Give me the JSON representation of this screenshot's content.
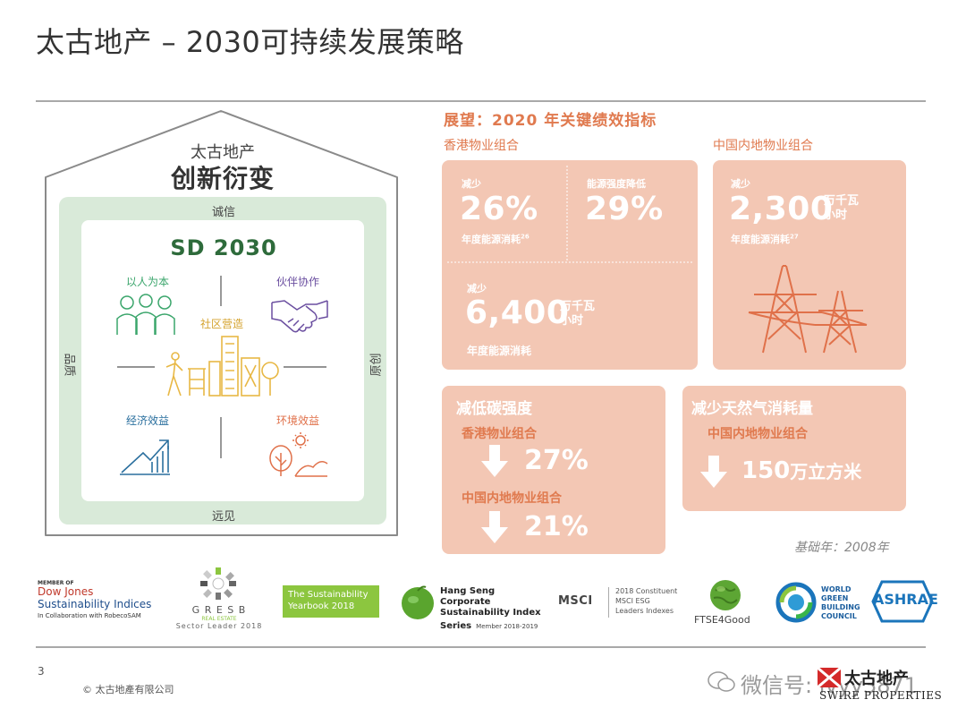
{
  "slide": {
    "title": "太古地产 – 2030可持续发展策略",
    "page_number": "3",
    "copyright": "© 太古地產有限公司"
  },
  "house": {
    "company": "太古地产",
    "slogan": "创新衍变",
    "top_band": "诚信",
    "bottom_band": "远见",
    "left_band": "品质",
    "right_band": "原创",
    "center_title": "SD 2030",
    "center_label": "社区营造",
    "quadrants": [
      {
        "label": "以人为本",
        "icon": "people-icon",
        "color": "#3aa56b"
      },
      {
        "label": "伙伴协作",
        "icon": "handshake-icon",
        "color": "#6b4fa0"
      },
      {
        "label": "经济效益",
        "icon": "growth-chart-icon",
        "color": "#2a6f9e"
      },
      {
        "label": "环境效益",
        "icon": "nature-icon",
        "color": "#e0714a"
      }
    ],
    "colors": {
      "band": "#d9ead9",
      "outline": "#8a8a8a",
      "green": "#2e6b3b",
      "gold": "#e8b845"
    }
  },
  "outlook": {
    "title": "展望：2020 年关键绩效指标",
    "hk_label": "香港物业组合",
    "cn_label": "中国内地物业组合",
    "hk_box": {
      "k1": {
        "label": "减少",
        "value": "26%",
        "desc": "年度能源消耗",
        "sup": "26"
      },
      "k2": {
        "label": "能源强度降低",
        "value": "29%"
      },
      "k3": {
        "label": "减少",
        "value": "6,400",
        "unit1": "万千瓦",
        "unit2": "小时",
        "desc": "年度能源消耗"
      }
    },
    "cn_box": {
      "label": "减少",
      "value": "2,300",
      "unit1": "万千瓦",
      "unit2": "小时",
      "desc": "年度能源消耗",
      "sup": "27",
      "icon": "power-tower-icon"
    },
    "carbon": {
      "title": "减低碳强度",
      "hk_label": "香港物业组合",
      "hk_value": "27%",
      "cn_label": "中国内地物业组合",
      "cn_value": "21%"
    },
    "gas": {
      "title": "减少天然气消耗量",
      "cn_label": "中国内地物业组合",
      "value": "150",
      "unit": "万立方米"
    },
    "base_year": "基础年：2008年",
    "colors": {
      "box": "#f3c7b4",
      "accent": "#e07a4f"
    }
  },
  "logos": {
    "djsi": {
      "line1": "MEMBER OF",
      "line2": "Dow Jones",
      "line3": "Sustainability Indices",
      "line4": "In Collaboration with RobecoSAM"
    },
    "gresb": {
      "name": "G R E S B",
      "sub": "REAL ESTATE",
      "badge": "Sector Leader 2018"
    },
    "yearbook": {
      "line1": "The Sustainability",
      "line2": "Yearbook 2018"
    },
    "hangseng": {
      "line1": "Hang Seng Corporate",
      "line2": "Sustainability Index",
      "line3": "Series",
      "line4": "Member 2018-2019"
    },
    "msci": {
      "name": "MSCI",
      "line1": "2018 Constituent",
      "line2": "MSCI ESG",
      "line3": "Leaders Indexes"
    },
    "ftse": {
      "name": "FTSE4Good"
    },
    "wgbc": {
      "line1": "WORLD",
      "line2": "GREEN",
      "line3": "BUILDING",
      "line4": "COUNCIL"
    },
    "ashrae": {
      "name": "ASHRAE"
    }
  },
  "watermark": {
    "text": "微信号: lvyy3871",
    "brand_cn": "太古地产",
    "brand_en": "SWIRE PROPERTIES"
  }
}
